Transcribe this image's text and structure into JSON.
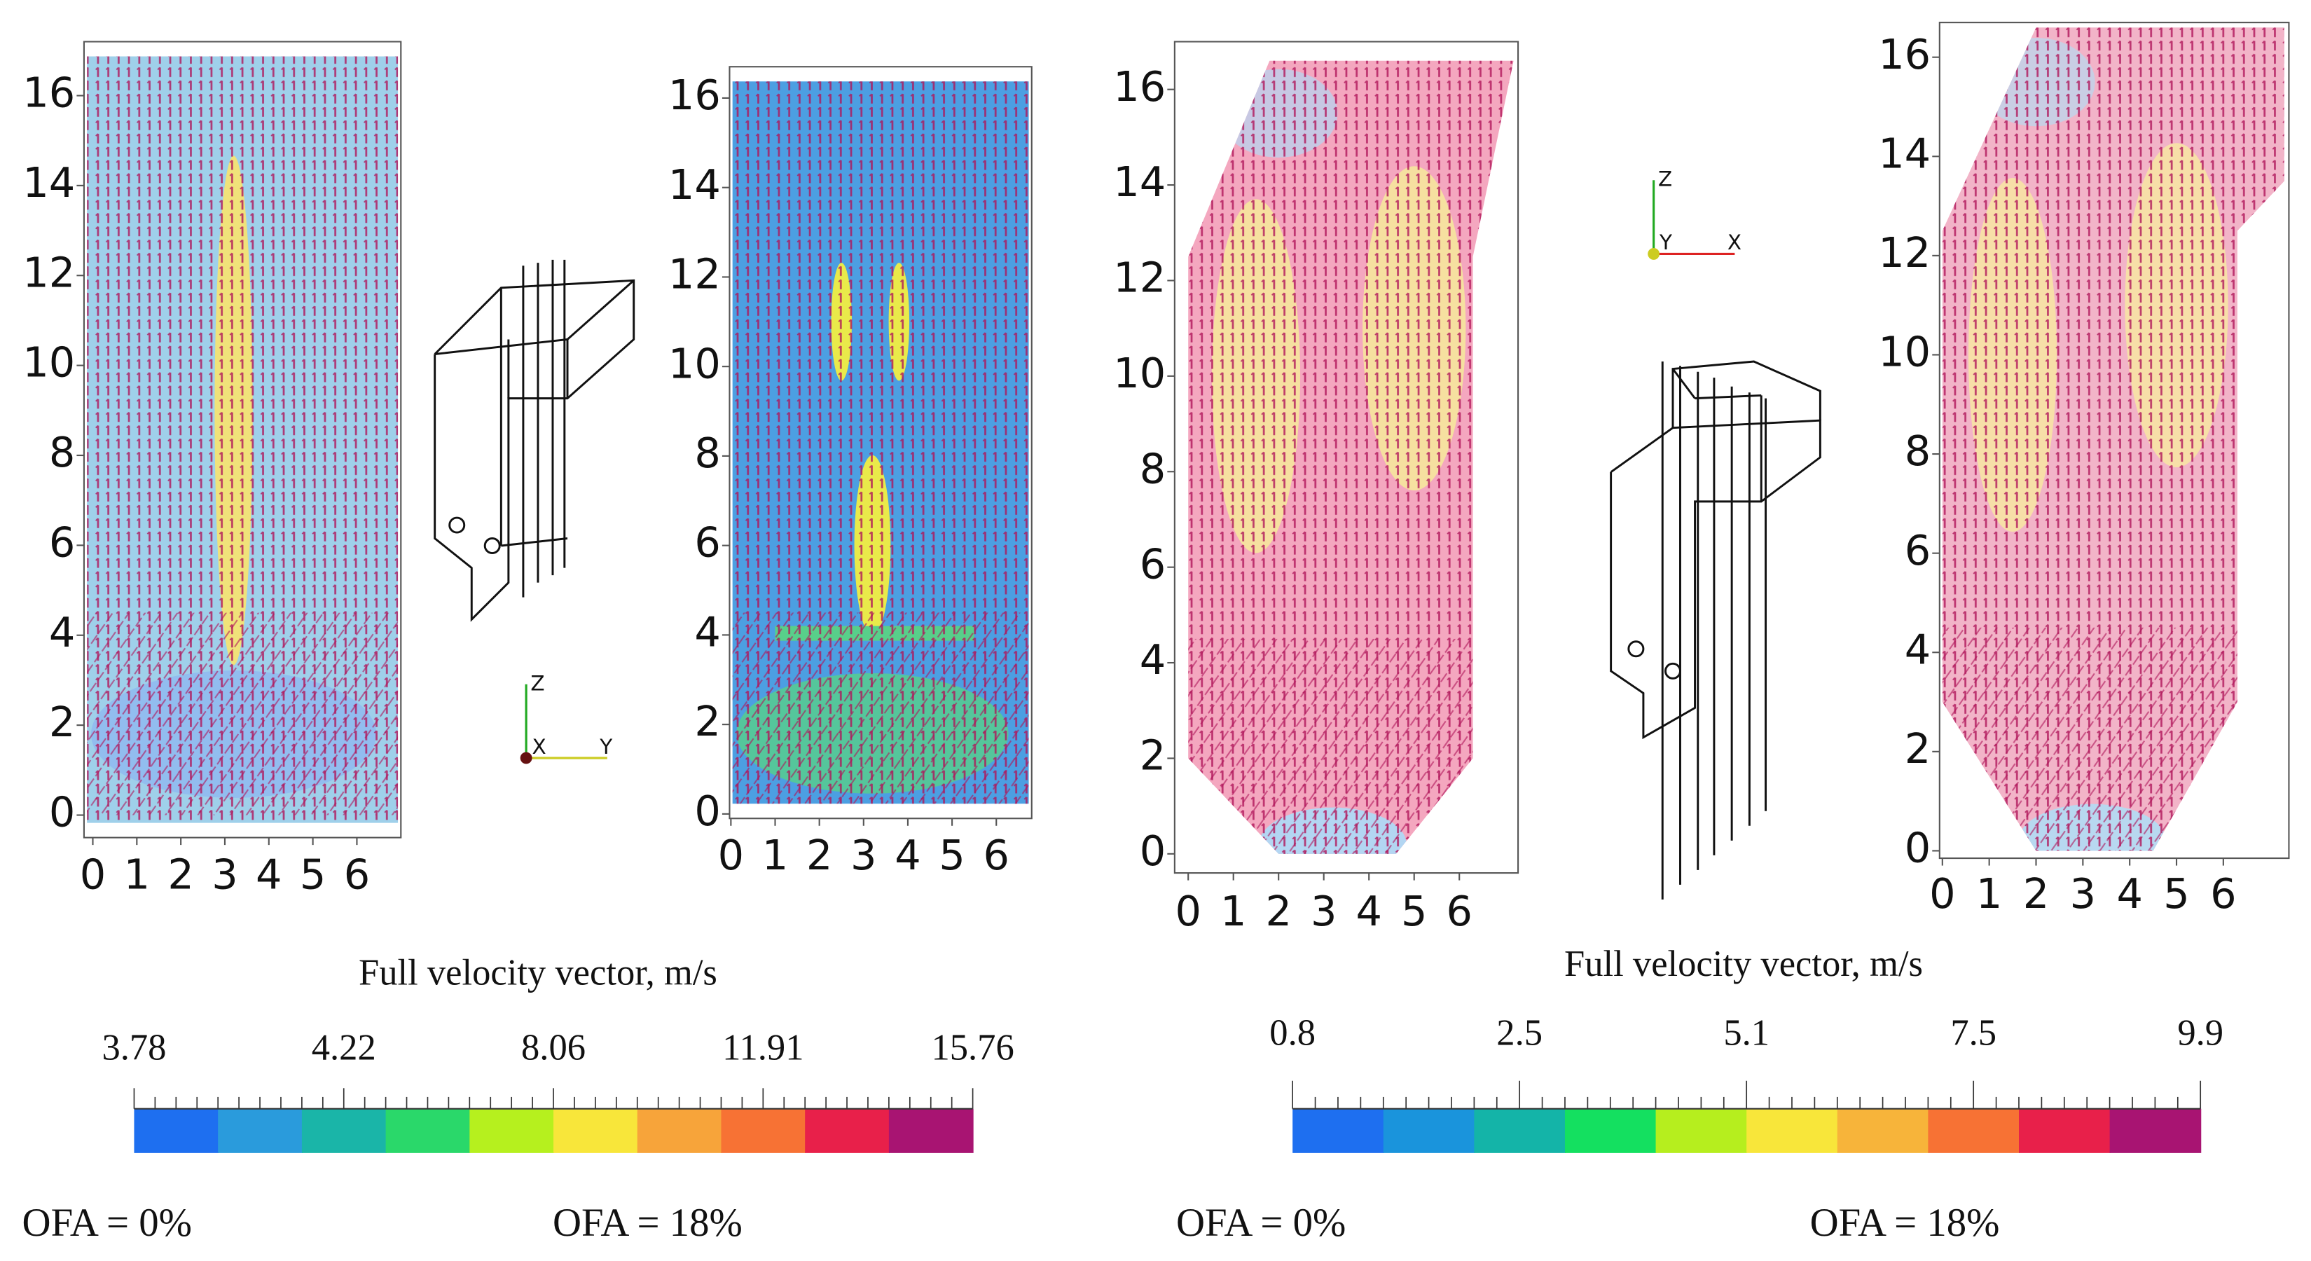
{
  "panels": [
    {
      "xlim": [
        -0.2,
        7
      ],
      "ylim": [
        -0.5,
        17.2
      ],
      "xticks": [
        0,
        1,
        2,
        3,
        4,
        5,
        6
      ],
      "yticks": [
        0,
        2,
        4,
        6,
        8,
        10,
        12,
        14,
        16
      ],
      "caption": "OFA = 0%"
    },
    {
      "xlim": [
        -0.03,
        6.8
      ],
      "ylim": [
        -0.1,
        16.7
      ],
      "xticks": [
        0,
        1,
        2,
        3,
        4,
        5,
        6
      ],
      "yticks": [
        0,
        2,
        4,
        6,
        8,
        10,
        12,
        14,
        16
      ],
      "caption": "OFA = 18%"
    },
    {
      "xlim": [
        -0.3,
        7.3
      ],
      "ylim": [
        -0.4,
        17.0
      ],
      "xticks": [
        0,
        1,
        2,
        3,
        4,
        5,
        6
      ],
      "yticks": [
        0,
        2,
        4,
        6,
        8,
        10,
        12,
        14,
        16
      ],
      "caption": "OFA = 0%"
    },
    {
      "xlim": [
        -0.06,
        7.4
      ],
      "ylim": [
        -0.15,
        16.7
      ],
      "xticks": [
        0,
        1,
        2,
        3,
        4,
        5,
        6
      ],
      "yticks": [
        0,
        2,
        4,
        6,
        8,
        10,
        12,
        14,
        16
      ],
      "caption": "OFA = 18%"
    }
  ],
  "colorbars": [
    {
      "title": "Full velocity vector, m/s",
      "labels": [
        "3.78",
        "4.22",
        "8.06",
        "11.91",
        "15.76"
      ],
      "colors": [
        "#1e6ff0",
        "#2a9bdc",
        "#1ab5a8",
        "#2ad86a",
        "#b6f01e",
        "#f8e63a",
        "#f7a43a",
        "#f77234",
        "#e8204a",
        "#a81472"
      ]
    },
    {
      "title": "Full velocity vector, m/s",
      "labels": [
        "0.8",
        "2.5",
        "5.1",
        "7.5",
        "9.9"
      ],
      "colors": [
        "#1e6ff0",
        "#1a94dc",
        "#14b4a8",
        "#14e060",
        "#b6ee1e",
        "#f8e63a",
        "#f7b43a",
        "#f77234",
        "#e8204a",
        "#a81472"
      ]
    }
  ],
  "triads": [
    {
      "labels": [
        "Z",
        "X",
        "Y"
      ]
    },
    {
      "labels": [
        "Z",
        "Y",
        "X"
      ]
    }
  ]
}
